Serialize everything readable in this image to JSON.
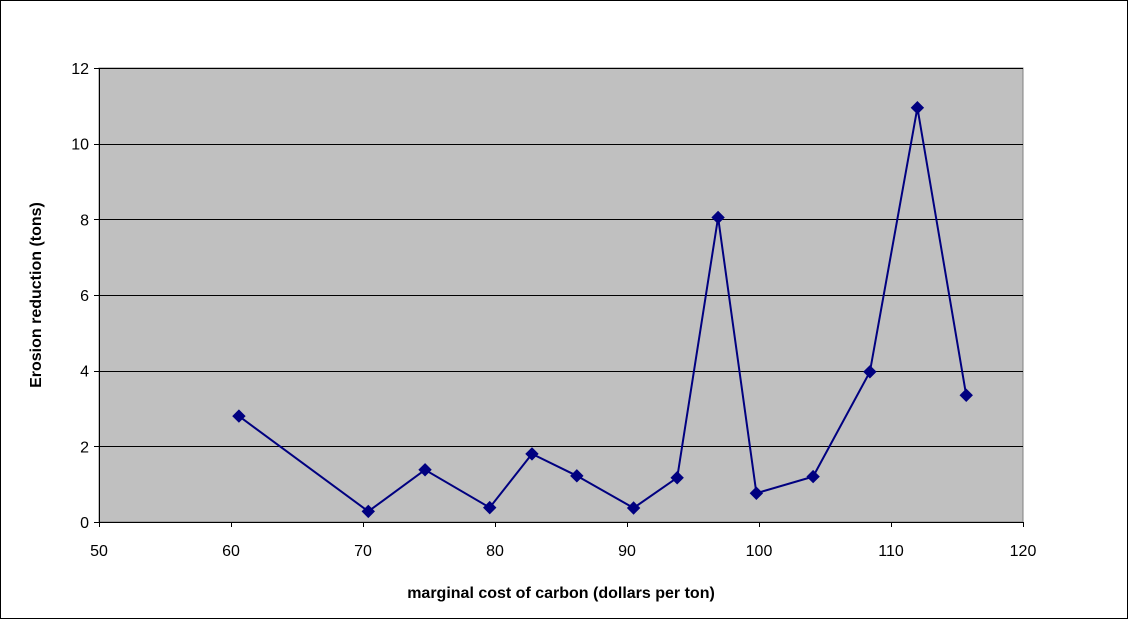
{
  "chart_data": {
    "type": "line",
    "title": "",
    "xlabel": "marginal cost of carbon (dollars per ton)",
    "ylabel": "Erosion reduction (tons)",
    "xlim": [
      50,
      120
    ],
    "ylim": [
      0,
      12
    ],
    "x_ticks": [
      50,
      60,
      70,
      80,
      90,
      100,
      110,
      120
    ],
    "y_ticks": [
      0,
      2,
      4,
      6,
      8,
      10,
      12
    ],
    "grid": "horizontal",
    "legend": "none",
    "series": [
      {
        "marker": "diamond",
        "color": "#000080",
        "points": [
          {
            "x": 60.6,
            "y": 2.8
          },
          {
            "x": 70.4,
            "y": 0.28
          },
          {
            "x": 74.7,
            "y": 1.38
          },
          {
            "x": 79.6,
            "y": 0.38
          },
          {
            "x": 82.8,
            "y": 1.8
          },
          {
            "x": 86.2,
            "y": 1.22
          },
          {
            "x": 90.5,
            "y": 0.37
          },
          {
            "x": 93.8,
            "y": 1.17
          },
          {
            "x": 96.9,
            "y": 8.05
          },
          {
            "x": 99.8,
            "y": 0.76
          },
          {
            "x": 104.1,
            "y": 1.2
          },
          {
            "x": 108.4,
            "y": 3.97
          },
          {
            "x": 112.0,
            "y": 10.95
          },
          {
            "x": 115.7,
            "y": 3.35
          }
        ]
      }
    ],
    "colors": {
      "plot_background": "#c0c0c0",
      "gridline": "#000000",
      "series": "#000080"
    }
  }
}
